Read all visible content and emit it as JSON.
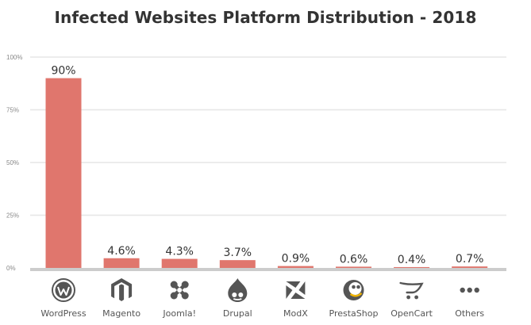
{
  "chart_data": {
    "type": "bar",
    "title": "Infected Websites Platform Distribution - 2018",
    "categories": [
      "WordPress",
      "Magento",
      "Joomla!",
      "Drupal",
      "ModX",
      "PrestaShop",
      "OpenCart",
      "Others"
    ],
    "values": [
      90,
      4.6,
      4.3,
      3.7,
      0.9,
      0.6,
      0.4,
      0.7
    ],
    "value_labels": [
      "90%",
      "4.6%",
      "4.3%",
      "3.7%",
      "0.9%",
      "0.6%",
      "0.4%",
      "0.7%"
    ],
    "y_ticks": [
      0,
      25,
      50,
      75,
      100
    ],
    "y_tick_labels": [
      "0%",
      "25%",
      "50%",
      "75%",
      "100%"
    ],
    "ylim": [
      0,
      100
    ],
    "xlabel": "",
    "ylabel": "",
    "grid": true,
    "legend": "none",
    "icons": [
      "wordpress-icon",
      "magento-icon",
      "joomla-icon",
      "drupal-icon",
      "modx-icon",
      "prestashop-icon",
      "opencart-icon",
      "more-icon"
    ],
    "colors": {
      "bar": "#e0766d",
      "grid": "#e6e6e6",
      "baseline": "#cccccc",
      "icon": "#555555",
      "text": "#333333"
    }
  }
}
